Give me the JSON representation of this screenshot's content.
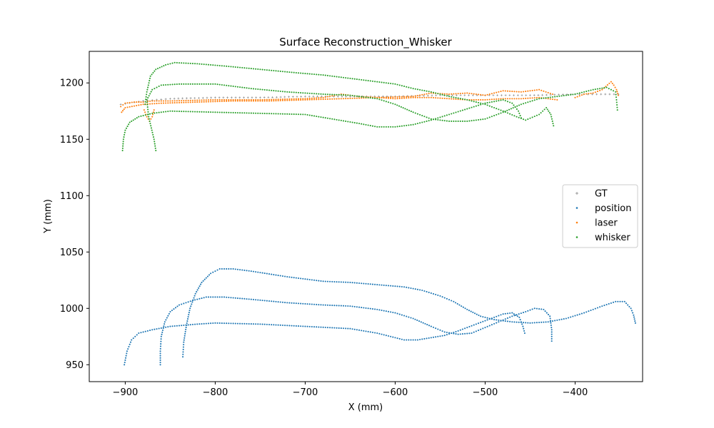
{
  "chart_data": {
    "type": "scatter",
    "title": "Surface Reconstruction_Whisker",
    "xlabel": "X (mm)",
    "ylabel": "Y (mm)",
    "xlim": [
      -940,
      -325
    ],
    "ylim": [
      935,
      1228
    ],
    "xticks": [
      -900,
      -800,
      -700,
      -600,
      -500,
      -400
    ],
    "xtick_labels": [
      "−900",
      "−800",
      "−700",
      "−600",
      "−500",
      "−400"
    ],
    "yticks": [
      950,
      1000,
      1050,
      1100,
      1150,
      1200
    ],
    "ytick_labels": [
      "950",
      "1000",
      "1050",
      "1100",
      "1150",
      "1200"
    ],
    "grid": false,
    "legend_position": "center-right",
    "series": [
      {
        "name": "GT",
        "color": "#7f7f7f",
        "marker": "plus",
        "curves": [
          [
            [
              -905,
              1181
            ],
            [
              -880,
              1184
            ],
            [
              -850,
              1186
            ],
            [
              -800,
              1187
            ],
            [
              -750,
              1187
            ],
            [
              -700,
              1188
            ],
            [
              -650,
              1188
            ],
            [
              -600,
              1188
            ],
            [
              -550,
              1189
            ],
            [
              -500,
              1189
            ],
            [
              -450,
              1189
            ],
            [
              -400,
              1190
            ],
            [
              -352,
              1190
            ]
          ]
        ]
      },
      {
        "name": "position",
        "color": "#1f77b4",
        "marker": "dot",
        "curves": [
          [
            [
              -901,
              950
            ],
            [
              -898,
              962
            ],
            [
              -893,
              972
            ],
            [
              -885,
              978
            ],
            [
              -870,
              981
            ],
            [
              -850,
              984
            ],
            [
              -820,
              986
            ],
            [
              -800,
              987
            ],
            [
              -750,
              986
            ],
            [
              -700,
              984
            ],
            [
              -650,
              982
            ],
            [
              -620,
              978
            ],
            [
              -600,
              974
            ],
            [
              -590,
              972
            ],
            [
              -575,
              972
            ],
            [
              -560,
              974
            ],
            [
              -545,
              976
            ],
            [
              -530,
              980
            ],
            [
              -510,
              986
            ],
            [
              -490,
              992
            ],
            [
              -480,
              995
            ],
            [
              -470,
              996
            ],
            [
              -462,
              992
            ],
            [
              -458,
              984
            ],
            [
              -456,
              978
            ]
          ],
          [
            [
              -861,
              950
            ],
            [
              -861,
              962
            ],
            [
              -860,
              975
            ],
            [
              -856,
              988
            ],
            [
              -850,
              997
            ],
            [
              -840,
              1003
            ],
            [
              -825,
              1007
            ],
            [
              -810,
              1010
            ],
            [
              -790,
              1010
            ],
            [
              -760,
              1008
            ],
            [
              -720,
              1005
            ],
            [
              -680,
              1003
            ],
            [
              -650,
              1002
            ],
            [
              -620,
              999
            ],
            [
              -600,
              996
            ],
            [
              -580,
              991
            ],
            [
              -560,
              984
            ],
            [
              -545,
              979
            ],
            [
              -530,
              977
            ],
            [
              -515,
              978
            ],
            [
              -500,
              983
            ],
            [
              -485,
              988
            ],
            [
              -470,
              993
            ],
            [
              -455,
              997
            ],
            [
              -445,
              1000
            ],
            [
              -435,
              999
            ],
            [
              -428,
              993
            ],
            [
              -426,
              981
            ],
            [
              -426,
              971
            ]
          ],
          [
            [
              -836,
              957
            ],
            [
              -835,
              970
            ],
            [
              -832,
              985
            ],
            [
              -828,
              1000
            ],
            [
              -822,
              1013
            ],
            [
              -815,
              1023
            ],
            [
              -805,
              1031
            ],
            [
              -795,
              1035
            ],
            [
              -780,
              1035
            ],
            [
              -760,
              1033
            ],
            [
              -720,
              1028
            ],
            [
              -680,
              1024
            ],
            [
              -650,
              1023
            ],
            [
              -620,
              1021
            ],
            [
              -590,
              1019
            ],
            [
              -570,
              1016
            ],
            [
              -550,
              1011
            ],
            [
              -535,
              1006
            ],
            [
              -520,
              999
            ],
            [
              -505,
              993
            ],
            [
              -490,
              990
            ],
            [
              -470,
              988
            ],
            [
              -450,
              987
            ],
            [
              -430,
              988
            ],
            [
              -410,
              991
            ],
            [
              -390,
              996
            ],
            [
              -370,
              1002
            ],
            [
              -355,
              1006
            ],
            [
              -345,
              1006
            ],
            [
              -338,
              1000
            ],
            [
              -335,
              994
            ],
            [
              -333,
              987
            ]
          ]
        ]
      },
      {
        "name": "laser",
        "color": "#ff7f0e",
        "marker": "dot",
        "curves": [
          [
            [
              -905,
              1179
            ],
            [
              -900,
              1182
            ],
            [
              -890,
              1183
            ],
            [
              -880,
              1183
            ],
            [
              -870,
              1184
            ],
            [
              -850,
              1184
            ],
            [
              -800,
              1185
            ],
            [
              -750,
              1185
            ],
            [
              -700,
              1186
            ],
            [
              -680,
              1187
            ],
            [
              -660,
              1190
            ],
            [
              -640,
              1188
            ],
            [
              -620,
              1187
            ],
            [
              -600,
              1186
            ],
            [
              -580,
              1187
            ],
            [
              -560,
              1187
            ],
            [
              -540,
              1186
            ],
            [
              -520,
              1185
            ],
            [
              -500,
              1185
            ],
            [
              -480,
              1186
            ],
            [
              -460,
              1186
            ],
            [
              -440,
              1187
            ],
            [
              -420,
              1185
            ]
          ],
          [
            [
              -904,
              1174
            ],
            [
              -900,
              1178
            ],
            [
              -880,
              1181
            ],
            [
              -860,
              1182
            ],
            [
              -820,
              1183
            ],
            [
              -780,
              1184
            ],
            [
              -740,
              1184
            ],
            [
              -700,
              1185
            ],
            [
              -660,
              1186
            ],
            [
              -620,
              1187
            ],
            [
              -580,
              1188
            ],
            [
              -560,
              1191
            ],
            [
              -540,
              1190
            ],
            [
              -520,
              1191
            ],
            [
              -500,
              1189
            ],
            [
              -480,
              1193
            ],
            [
              -460,
              1192
            ],
            [
              -440,
              1194
            ],
            [
              -425,
              1190
            ]
          ],
          [
            [
              -879,
              1176
            ],
            [
              -876,
              1170
            ],
            [
              -873,
              1166
            ],
            [
              -870,
              1170
            ],
            [
              -868,
              1176
            ]
          ],
          [
            [
              -400,
              1187
            ],
            [
              -390,
              1190
            ],
            [
              -380,
              1191
            ],
            [
              -370,
              1194
            ],
            [
              -360,
              1201
            ],
            [
              -357,
              1198
            ],
            [
              -354,
              1194
            ],
            [
              -352,
              1189
            ]
          ]
        ]
      },
      {
        "name": "whisker",
        "color": "#2ca02c",
        "marker": "dot",
        "curves": [
          [
            [
              -903,
              1140
            ],
            [
              -902,
              1150
            ],
            [
              -900,
              1158
            ],
            [
              -895,
              1165
            ],
            [
              -885,
              1170
            ],
            [
              -870,
              1173
            ],
            [
              -850,
              1175
            ],
            [
              -800,
              1174
            ],
            [
              -750,
              1173
            ],
            [
              -700,
              1172
            ],
            [
              -670,
              1168
            ],
            [
              -640,
              1164
            ],
            [
              -620,
              1161
            ],
            [
              -600,
              1161
            ],
            [
              -580,
              1163
            ],
            [
              -560,
              1167
            ],
            [
              -540,
              1172
            ],
            [
              -520,
              1177
            ],
            [
              -500,
              1182
            ],
            [
              -480,
              1185
            ],
            [
              -470,
              1182
            ],
            [
              -463,
              1175
            ],
            [
              -460,
              1169
            ]
          ],
          [
            [
              -878,
              1181
            ],
            [
              -876,
              1192
            ],
            [
              -872,
              1206
            ],
            [
              -866,
              1212
            ],
            [
              -855,
              1216
            ],
            [
              -845,
              1218
            ],
            [
              -820,
              1217
            ],
            [
              -790,
              1215
            ],
            [
              -750,
              1212
            ],
            [
              -710,
              1209
            ],
            [
              -680,
              1207
            ],
            [
              -650,
              1204
            ],
            [
              -620,
              1201
            ],
            [
              -600,
              1199
            ],
            [
              -580,
              1195
            ],
            [
              -560,
              1192
            ],
            [
              -540,
              1188
            ],
            [
              -520,
              1185
            ],
            [
              -500,
              1181
            ],
            [
              -480,
              1175
            ],
            [
              -465,
              1170
            ],
            [
              -455,
              1167
            ],
            [
              -440,
              1172
            ],
            [
              -432,
              1178
            ],
            [
              -427,
              1172
            ],
            [
              -424,
              1162
            ]
          ],
          [
            [
              -866,
              1140
            ],
            [
              -868,
              1150
            ],
            [
              -871,
              1160
            ],
            [
              -874,
              1170
            ],
            [
              -876,
              1185
            ],
            [
              -870,
              1194
            ],
            [
              -860,
              1198
            ],
            [
              -840,
              1199
            ],
            [
              -800,
              1199
            ],
            [
              -760,
              1195
            ],
            [
              -720,
              1192
            ],
            [
              -680,
              1190
            ],
            [
              -650,
              1189
            ],
            [
              -620,
              1186
            ],
            [
              -600,
              1181
            ],
            [
              -580,
              1174
            ],
            [
              -560,
              1168
            ],
            [
              -540,
              1166
            ],
            [
              -520,
              1166
            ],
            [
              -500,
              1168
            ],
            [
              -480,
              1174
            ],
            [
              -460,
              1181
            ],
            [
              -440,
              1186
            ],
            [
              -420,
              1188
            ],
            [
              -400,
              1190
            ],
            [
              -380,
              1194
            ],
            [
              -365,
              1196
            ],
            [
              -355,
              1192
            ],
            [
              -354,
              1185
            ],
            [
              -353,
              1176
            ]
          ]
        ]
      }
    ]
  }
}
